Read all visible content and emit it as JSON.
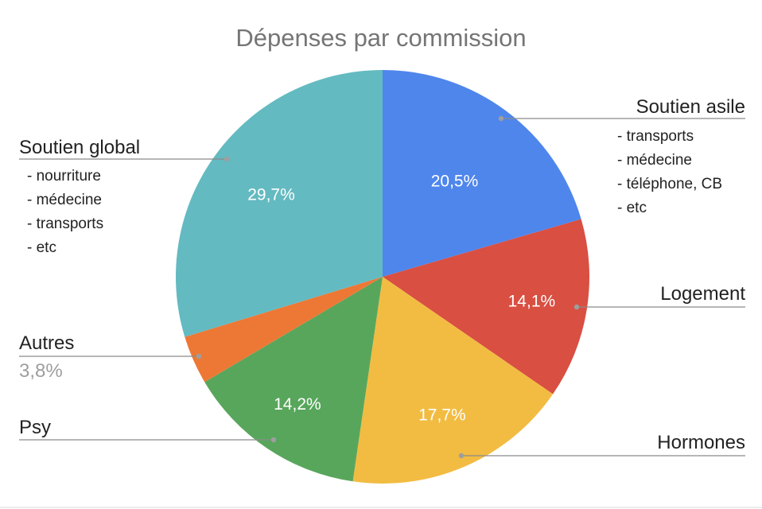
{
  "chart_data": {
    "type": "pie",
    "title": "Dépenses par commission",
    "slices": [
      {
        "label": "Soutien asile",
        "value": 20.5,
        "pct_label": "20,5%",
        "color": "#4F86EC",
        "details": [
          "- transports",
          "- médecine",
          "- téléphone, CB",
          "- etc"
        ]
      },
      {
        "label": "Logement",
        "value": 14.1,
        "pct_label": "14,1%",
        "color": "#D94F42",
        "details": []
      },
      {
        "label": "Hormones",
        "value": 17.7,
        "pct_label": "17,7%",
        "color": "#F2BC42",
        "details": []
      },
      {
        "label": "Psy",
        "value": 14.2,
        "pct_label": "14,2%",
        "color": "#58A65C",
        "details": []
      },
      {
        "label": "Autres",
        "value": 3.8,
        "pct_label": "3,8%",
        "color": "#ED7835",
        "details": []
      },
      {
        "label": "Soutien global",
        "value": 29.7,
        "pct_label": "29,7%",
        "color": "#64BAC1",
        "details": [
          "- nourriture",
          "- médecine",
          "- transports",
          "- etc"
        ]
      }
    ]
  }
}
